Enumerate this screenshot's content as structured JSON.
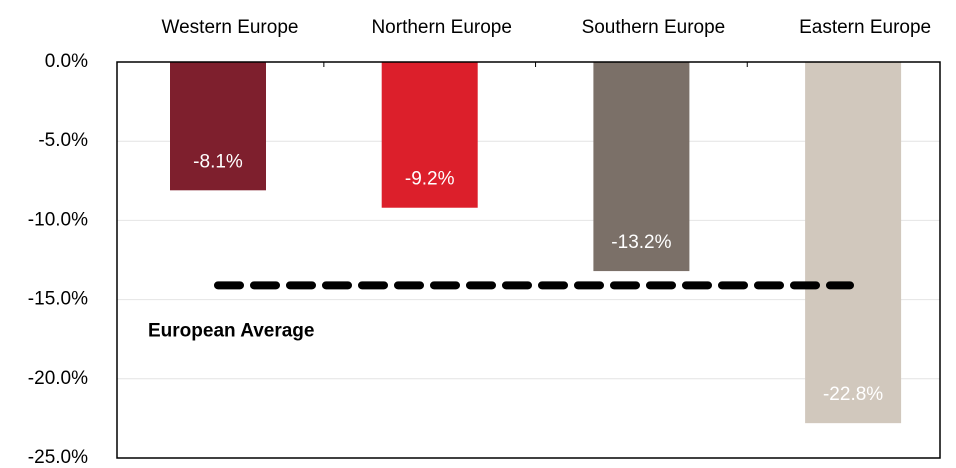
{
  "chart_data": {
    "type": "bar",
    "categories": [
      "Western Europe",
      "Northern Europe",
      "Southern Europe",
      "Eastern Europe"
    ],
    "values": [
      -8.1,
      -9.2,
      -13.2,
      -22.8
    ],
    "value_labels": [
      "-8.1%",
      "-9.2%",
      "-13.2%",
      "-22.8%"
    ],
    "colors": [
      "#7e1f2d",
      "#dc1f2b",
      "#7b7068",
      "#d1c8bd"
    ],
    "ylim": [
      -25,
      0
    ],
    "yticks": [
      {
        "value": 0,
        "label": "0.0%"
      },
      {
        "value": -5,
        "label": "-5.0%"
      },
      {
        "value": -10,
        "label": "-10.0%"
      },
      {
        "value": -15,
        "label": "-15.0%"
      },
      {
        "value": -20,
        "label": "-20.0%"
      },
      {
        "value": -25,
        "label": "-25.0%"
      }
    ],
    "grid": true,
    "reference_lines": [
      {
        "value": -14.1,
        "label": "European Average",
        "color": "#000000"
      }
    ]
  }
}
